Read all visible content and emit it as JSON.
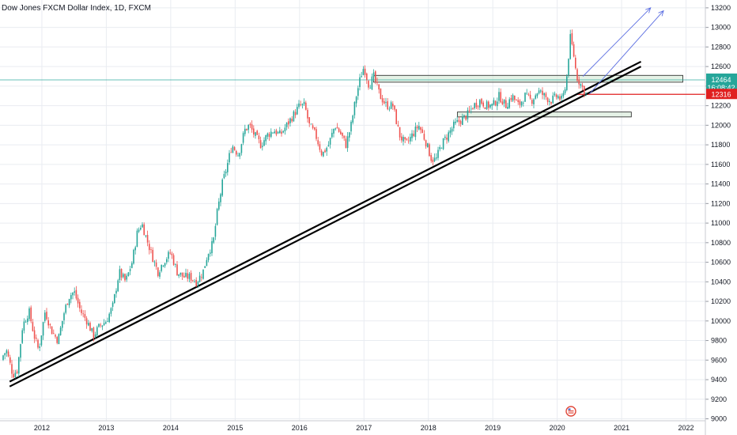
{
  "chart_data": {
    "type": "candlestick",
    "title": "Dow Jones FXCM Dollar Index, 1D, FXCM",
    "x_ticks": [
      "2012",
      "2013",
      "2014",
      "2015",
      "2016",
      "2017",
      "2018",
      "2019",
      "2020",
      "2021",
      "2022"
    ],
    "x_range": [
      2011.35,
      2022.3
    ],
    "y_ticks": [
      9000,
      9200,
      9400,
      9600,
      9800,
      10000,
      10200,
      10400,
      10600,
      10800,
      11000,
      11200,
      11400,
      11600,
      11800,
      12000,
      12200,
      12400,
      12600,
      12800,
      13000,
      13200
    ],
    "ylim": [
      8980,
      13280
    ],
    "grid": true,
    "colors": {
      "up": "#26a69a",
      "down": "#ef5350",
      "grid": "#e9ecf1",
      "axis_text": "#131722",
      "trendline": "#000000",
      "arrow": "#5b6ee1",
      "zone_fill": "#d4e9d6",
      "zone_border": "#1e1e1e",
      "price_line": "#26a69a",
      "stop_line": "#e01f1f",
      "price_tag": "#26a69a",
      "stop_tag": "#e01f1f"
    },
    "price_path": [
      [
        2011.35,
        9600
      ],
      [
        2011.45,
        9700
      ],
      [
        2011.55,
        9450
      ],
      [
        2011.62,
        9500
      ],
      [
        2011.7,
        9950
      ],
      [
        2011.8,
        10100
      ],
      [
        2011.88,
        9850
      ],
      [
        2011.95,
        9700
      ],
      [
        2012.05,
        10100
      ],
      [
        2012.15,
        9900
      ],
      [
        2012.25,
        9800
      ],
      [
        2012.35,
        10100
      ],
      [
        2012.42,
        10250
      ],
      [
        2012.5,
        10300
      ],
      [
        2012.6,
        10100
      ],
      [
        2012.7,
        10000
      ],
      [
        2012.8,
        9850
      ],
      [
        2012.9,
        9950
      ],
      [
        2013.0,
        10000
      ],
      [
        2013.1,
        10150
      ],
      [
        2013.2,
        10500
      ],
      [
        2013.3,
        10400
      ],
      [
        2013.4,
        10600
      ],
      [
        2013.48,
        10900
      ],
      [
        2013.55,
        11000
      ],
      [
        2013.62,
        10850
      ],
      [
        2013.72,
        10650
      ],
      [
        2013.8,
        10500
      ],
      [
        2013.88,
        10600
      ],
      [
        2014.0,
        10700
      ],
      [
        2014.1,
        10500
      ],
      [
        2014.2,
        10450
      ],
      [
        2014.3,
        10450
      ],
      [
        2014.4,
        10400
      ],
      [
        2014.5,
        10500
      ],
      [
        2014.58,
        10700
      ],
      [
        2014.66,
        10800
      ],
      [
        2014.72,
        11100
      ],
      [
        2014.8,
        11400
      ],
      [
        2014.88,
        11600
      ],
      [
        2014.95,
        11800
      ],
      [
        2015.05,
        11700
      ],
      [
        2015.15,
        11950
      ],
      [
        2015.22,
        12000
      ],
      [
        2015.3,
        11900
      ],
      [
        2015.4,
        11800
      ],
      [
        2015.5,
        11900
      ],
      [
        2015.6,
        11950
      ],
      [
        2015.7,
        11900
      ],
      [
        2015.8,
        12000
      ],
      [
        2015.9,
        12100
      ],
      [
        2016.0,
        12200
      ],
      [
        2016.08,
        12200
      ],
      [
        2016.15,
        12000
      ],
      [
        2016.25,
        11900
      ],
      [
        2016.35,
        11700
      ],
      [
        2016.45,
        11800
      ],
      [
        2016.55,
        12000
      ],
      [
        2016.65,
        11900
      ],
      [
        2016.72,
        11800
      ],
      [
        2016.8,
        12000
      ],
      [
        2016.88,
        12300
      ],
      [
        2016.95,
        12500
      ],
      [
        2017.0,
        12600
      ],
      [
        2017.08,
        12400
      ],
      [
        2017.15,
        12500
      ],
      [
        2017.25,
        12300
      ],
      [
        2017.35,
        12200
      ],
      [
        2017.45,
        12200
      ],
      [
        2017.55,
        11900
      ],
      [
        2017.65,
        11800
      ],
      [
        2017.75,
        11900
      ],
      [
        2017.85,
        12000
      ],
      [
        2017.95,
        11850
      ],
      [
        2018.05,
        11650
      ],
      [
        2018.12,
        11650
      ],
      [
        2018.2,
        11800
      ],
      [
        2018.3,
        11900
      ],
      [
        2018.4,
        12000
      ],
      [
        2018.5,
        12050
      ],
      [
        2018.6,
        12100
      ],
      [
        2018.7,
        12200
      ],
      [
        2018.8,
        12250
      ],
      [
        2018.9,
        12200
      ],
      [
        2019.0,
        12200
      ],
      [
        2019.1,
        12300
      ],
      [
        2019.2,
        12200
      ],
      [
        2019.3,
        12300
      ],
      [
        2019.4,
        12200
      ],
      [
        2019.5,
        12300
      ],
      [
        2019.6,
        12250
      ],
      [
        2019.7,
        12350
      ],
      [
        2019.8,
        12300
      ],
      [
        2019.9,
        12250
      ],
      [
        2020.0,
        12300
      ],
      [
        2020.08,
        12250
      ],
      [
        2020.15,
        12500
      ],
      [
        2020.2,
        12900
      ],
      [
        2020.25,
        12750
      ],
      [
        2020.3,
        12500
      ],
      [
        2020.38,
        12400
      ],
      [
        2020.45,
        12316
      ]
    ],
    "trendlines": [
      {
        "from": [
          2011.5,
          9330
        ],
        "to": [
          2021.3,
          12600
        ]
      },
      {
        "from": [
          2011.5,
          9380
        ],
        "to": [
          2021.3,
          12650
        ]
      }
    ],
    "arrows": [
      {
        "from": [
          2020.4,
          12500
        ],
        "to": [
          2021.45,
          13200
        ]
      },
      {
        "from": [
          2020.5,
          12320
        ],
        "to": [
          2021.65,
          13170
        ]
      }
    ],
    "zones": [
      {
        "x": [
          2017.15,
          2021.95
        ],
        "y": [
          12440,
          12510
        ]
      },
      {
        "x": [
          2018.45,
          2021.15
        ],
        "y": [
          12085,
          12135
        ]
      }
    ],
    "horizontal_lines": [
      {
        "value": 12464,
        "kind": "price"
      },
      {
        "value": 12316,
        "kind": "stop"
      }
    ],
    "price_tag": {
      "value": "12464",
      "time": "16:08:42"
    },
    "stop_tag": {
      "value": "12316"
    }
  }
}
